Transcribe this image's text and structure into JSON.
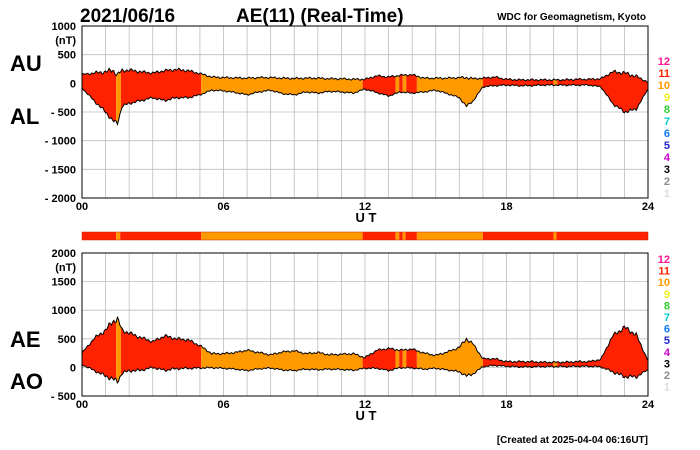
{
  "header": {
    "date": "2021/06/16",
    "title": "AE(11) (Real-Time)",
    "source": "WDC for Geomagnetism, Kyoto"
  },
  "footer": {
    "created": "[Created at 2025-04-04 06:16UT]"
  },
  "colors": {
    "grid": "#bdbdbd",
    "count_palette": {
      "1": "#dcdcdc",
      "2": "#8c8c8c",
      "3": "#000000",
      "4": "#cc00cc",
      "5": "#2222cc",
      "6": "#1177ee",
      "7": "#00cccc",
      "8": "#33cc33",
      "9": "#eeee22",
      "10": "#ff9900",
      "11": "#ff2200",
      "12": "#ff1493"
    }
  },
  "station_count_scale": [
    "12",
    "11",
    "10",
    "9",
    "8",
    "7",
    "6",
    "5",
    "4",
    "3",
    "2",
    "1"
  ],
  "station_count_bar": [
    {
      "start": 0,
      "end": 1.45,
      "count": 11
    },
    {
      "start": 1.45,
      "end": 1.62,
      "count": 10
    },
    {
      "start": 1.62,
      "end": 5.05,
      "count": 11
    },
    {
      "start": 5.05,
      "end": 11.9,
      "count": 10
    },
    {
      "start": 11.9,
      "end": 13.3,
      "count": 11
    },
    {
      "start": 13.3,
      "end": 13.45,
      "count": 10
    },
    {
      "start": 13.45,
      "end": 13.6,
      "count": 11
    },
    {
      "start": 13.6,
      "end": 13.72,
      "count": 10
    },
    {
      "start": 13.72,
      "end": 14.2,
      "count": 11
    },
    {
      "start": 14.2,
      "end": 17.0,
      "count": 10
    },
    {
      "start": 17.0,
      "end": 20.0,
      "count": 11
    },
    {
      "start": 20.0,
      "end": 20.12,
      "count": 10
    },
    {
      "start": 20.12,
      "end": 24,
      "count": 11
    }
  ],
  "chart_data": [
    {
      "type": "area",
      "panel": "AU/AL",
      "series_labels": [
        "AU",
        "AL"
      ],
      "xlabel": "U T",
      "ylabel_unit": "(nT)",
      "xlim": [
        0,
        24
      ],
      "xticks": [
        {
          "v": 0,
          "label": "00"
        },
        {
          "v": 6,
          "label": "06"
        },
        {
          "v": 12,
          "label": "12"
        },
        {
          "v": 18,
          "label": "18"
        },
        {
          "v": 24,
          "label": "24"
        }
      ],
      "ylim": [
        -2000,
        1000
      ],
      "yticks": [
        {
          "v": 1000,
          "label": "1000"
        },
        {
          "v": 500,
          "label": "500"
        },
        {
          "v": 0,
          "label": "0"
        },
        {
          "v": -500,
          "label": "- 500"
        },
        {
          "v": -1000,
          "label": "- 1000"
        },
        {
          "v": -1500,
          "label": "- 1500"
        },
        {
          "v": -2000,
          "label": "- 2000"
        }
      ],
      "grid": true,
      "x": [
        0,
        0.5,
        1,
        1.3,
        1.5,
        1.7,
        2,
        2.5,
        3,
        3.5,
        4,
        4.5,
        5,
        5.5,
        6,
        6.5,
        7,
        7.5,
        8,
        8.5,
        9,
        9.5,
        10,
        10.5,
        11,
        11.5,
        12,
        12.5,
        13,
        13.5,
        14,
        14.5,
        15,
        15.5,
        16,
        16.3,
        16.6,
        17,
        17.5,
        18,
        18.5,
        19,
        19.5,
        20,
        20.5,
        21,
        21.5,
        22,
        22.5,
        23,
        23.5,
        24
      ],
      "upper": [
        150,
        180,
        200,
        230,
        150,
        220,
        230,
        200,
        180,
        220,
        240,
        220,
        170,
        110,
        100,
        95,
        90,
        100,
        100,
        90,
        85,
        90,
        90,
        80,
        80,
        70,
        70,
        130,
        110,
        140,
        150,
        90,
        90,
        90,
        100,
        100,
        80,
        90,
        110,
        70,
        60,
        60,
        60,
        60,
        60,
        70,
        70,
        80,
        200,
        180,
        120,
        20
      ],
      "lower": [
        -80,
        -300,
        -500,
        -650,
        -700,
        -400,
        -350,
        -300,
        -250,
        -300,
        -250,
        -250,
        -200,
        -120,
        -130,
        -160,
        -200,
        -150,
        -120,
        -180,
        -200,
        -150,
        -170,
        -140,
        -150,
        -170,
        -100,
        -160,
        -220,
        -150,
        -170,
        -150,
        -120,
        -180,
        -250,
        -400,
        -300,
        -60,
        -40,
        -30,
        -40,
        -40,
        -30,
        -30,
        -30,
        -30,
        -30,
        -60,
        -350,
        -500,
        -450,
        -100
      ]
    },
    {
      "type": "area",
      "panel": "AE/AO",
      "series_labels": [
        "AE",
        "AO"
      ],
      "xlabel": "U T",
      "ylabel_unit": "(nT)",
      "xlim": [
        0,
        24
      ],
      "xticks": [
        {
          "v": 0,
          "label": "00"
        },
        {
          "v": 6,
          "label": "06"
        },
        {
          "v": 12,
          "label": "12"
        },
        {
          "v": 18,
          "label": "18"
        },
        {
          "v": 24,
          "label": "24"
        }
      ],
      "ylim": [
        -500,
        2000
      ],
      "yticks": [
        {
          "v": 2000,
          "label": "2000"
        },
        {
          "v": 1500,
          "label": "1500"
        },
        {
          "v": 1000,
          "label": "1000"
        },
        {
          "v": 500,
          "label": "500"
        },
        {
          "v": 0,
          "label": "0"
        },
        {
          "v": -500,
          "label": "- 500"
        }
      ],
      "grid": true,
      "x": [
        0,
        0.5,
        1,
        1.3,
        1.5,
        1.7,
        2,
        2.5,
        3,
        3.5,
        4,
        4.5,
        5,
        5.5,
        6,
        6.5,
        7,
        7.5,
        8,
        8.5,
        9,
        9.5,
        10,
        10.5,
        11,
        11.5,
        12,
        12.5,
        13,
        13.5,
        14,
        14.5,
        15,
        15.5,
        16,
        16.3,
        16.6,
        17,
        17.5,
        18,
        18.5,
        19,
        19.5,
        20,
        20.5,
        21,
        21.5,
        22,
        22.5,
        23,
        23.5,
        24
      ],
      "upper": [
        250,
        500,
        650,
        800,
        850,
        650,
        600,
        520,
        450,
        550,
        500,
        480,
        380,
        240,
        240,
        260,
        300,
        260,
        220,
        270,
        290,
        240,
        260,
        220,
        230,
        240,
        170,
        300,
        330,
        300,
        320,
        250,
        210,
        270,
        350,
        500,
        400,
        150,
        150,
        100,
        100,
        100,
        90,
        90,
        90,
        100,
        100,
        140,
        550,
        700,
        570,
        120
      ],
      "lower": [
        50,
        -50,
        -150,
        -200,
        -250,
        -100,
        -60,
        -50,
        0,
        -50,
        -20,
        -15,
        -10,
        -5,
        -15,
        -30,
        -55,
        -25,
        -10,
        -45,
        -55,
        -30,
        -40,
        -30,
        -35,
        -50,
        -15,
        -15,
        -55,
        -5,
        -10,
        -30,
        -15,
        -45,
        -75,
        -150,
        -110,
        15,
        35,
        20,
        10,
        10,
        15,
        15,
        15,
        20,
        20,
        10,
        -75,
        -160,
        -165,
        -40
      ]
    }
  ]
}
